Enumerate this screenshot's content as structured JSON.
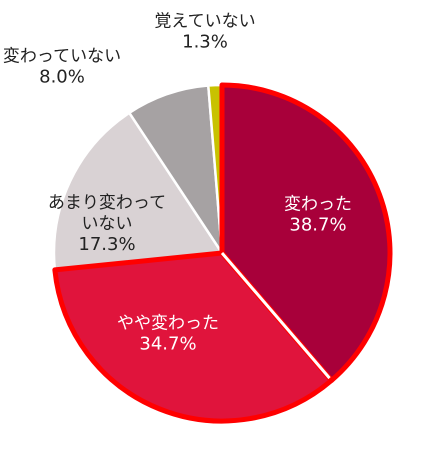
{
  "chart_data": {
    "type": "pie",
    "start": "top",
    "direction": "clockwise",
    "slices": [
      {
        "label": "変わった",
        "label_lines": [
          "変わった"
        ],
        "value": 38.7,
        "value_text": "38.7%",
        "color": "#a8003a",
        "label_color": "#ffffff",
        "highlight": true
      },
      {
        "label": "やや変わった",
        "label_lines": [
          "やや変わった"
        ],
        "value": 34.7,
        "value_text": "34.7%",
        "color": "#e0143c",
        "label_color": "#ffffff",
        "highlight": true
      },
      {
        "label": "あまり変わっていない",
        "label_lines": [
          "あまり変わって",
          "いない"
        ],
        "value": 17.3,
        "value_text": "17.3%",
        "color": "#d9d2d4",
        "label_color": "#222222",
        "highlight": false
      },
      {
        "label": "変わっていない",
        "label_lines": [
          "変わっていない"
        ],
        "value": 8.0,
        "value_text": "8.0%",
        "color": "#a6a2a3",
        "label_color": "#222222",
        "highlight": false
      },
      {
        "label": "覚えていない",
        "label_lines": [
          "覚えていない"
        ],
        "value": 1.3,
        "value_text": "1.3%",
        "color": "#c8c200",
        "label_color": "#222222",
        "highlight": false
      }
    ],
    "highlight_outline_color": "#ff0000"
  }
}
